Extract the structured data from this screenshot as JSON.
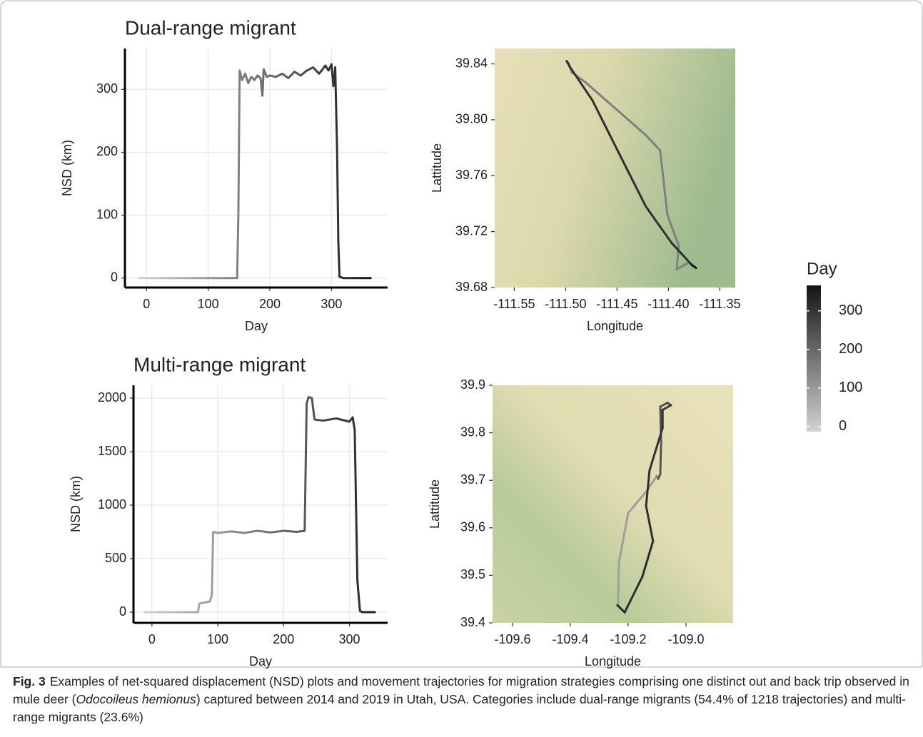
{
  "chart_data": [
    {
      "type": "line",
      "title": "Dual-range migrant",
      "x_label": "Day",
      "y_label": "NSD (km)",
      "x": [
        -13,
        147,
        149,
        151,
        155,
        160,
        165,
        170,
        175,
        180,
        185,
        188,
        190,
        195,
        200,
        210,
        220,
        230,
        240,
        250,
        260,
        270,
        280,
        290,
        295,
        300,
        303,
        306,
        309,
        311,
        313,
        320,
        340,
        365
      ],
      "values": [
        0,
        0,
        100,
        330,
        315,
        325,
        310,
        320,
        315,
        322,
        318,
        290,
        332,
        320,
        322,
        320,
        325,
        318,
        328,
        322,
        330,
        335,
        325,
        338,
        330,
        340,
        305,
        335,
        205,
        60,
        2,
        0,
        0,
        0
      ],
      "xlim": [
        -35,
        391
      ],
      "ylim": [
        -15,
        365
      ],
      "xticks": [
        0,
        100,
        200,
        300
      ],
      "yticks": [
        0,
        100,
        200,
        300
      ],
      "grid": true
    },
    {
      "type": "map",
      "x_label": "Longitude",
      "y_label": "Lattitude",
      "x": [
        -111.378,
        -111.38,
        -111.392,
        -111.39,
        -111.401,
        -111.408,
        -111.422,
        -111.453,
        -111.481,
        -111.494,
        -111.497,
        -111.499,
        -111.496,
        -111.474,
        -111.446,
        -111.422,
        -111.397,
        -111.377,
        -111.373
      ],
      "values": [
        39.696,
        39.698,
        39.693,
        39.71,
        39.732,
        39.778,
        39.789,
        39.809,
        39.827,
        39.834,
        39.84,
        39.842,
        39.838,
        39.814,
        39.773,
        39.738,
        39.712,
        39.696,
        39.694
      ],
      "day": [
        0,
        100,
        148,
        149,
        150,
        150,
        150,
        151,
        151,
        151,
        152,
        230,
        310,
        311,
        311,
        312,
        312,
        313,
        365
      ],
      "xlim": [
        -111.569,
        -111.335
      ],
      "ylim": [
        39.68,
        39.851
      ],
      "xticks": [
        -111.55,
        {
          "value": -111.5,
          "label": "-111.50"
        },
        -111.45,
        {
          "value": -111.4,
          "label": "-111.40"
        },
        -111.35
      ],
      "yticks": [
        39.68,
        39.72,
        39.76,
        {
          "value": 39.8,
          "label": "39.80"
        },
        39.84
      ]
    },
    {
      "type": "line",
      "title": "Multi-range migrant",
      "x_label": "Day",
      "y_label": "NSD (km)",
      "x": [
        -13,
        70,
        72,
        88,
        91,
        93,
        100,
        120,
        140,
        160,
        180,
        200,
        220,
        232,
        235,
        238,
        243,
        247,
        260,
        280,
        300,
        305,
        308,
        312,
        316,
        320,
        340
      ],
      "values": [
        0,
        0,
        80,
        100,
        160,
        750,
        740,
        755,
        740,
        760,
        745,
        760,
        750,
        760,
        1950,
        2010,
        2000,
        1800,
        1790,
        1810,
        1780,
        1820,
        1700,
        300,
        10,
        0,
        0
      ],
      "xlim": [
        -28,
        358
      ],
      "ylim": [
        -100,
        2120
      ],
      "xticks": [
        0,
        100,
        200,
        300
      ],
      "yticks": [
        0,
        500,
        1000,
        1500,
        2000
      ],
      "grid": true
    },
    {
      "type": "map",
      "x_label": "Longitude",
      "y_label": "Lattitude",
      "x": [
        -109.237,
        -109.235,
        -109.232,
        -109.2,
        -109.138,
        -109.101,
        -109.096,
        -109.089,
        -109.086,
        -109.089,
        -109.064,
        -109.052,
        -109.081,
        -109.081,
        -109.126,
        -109.138,
        -109.114,
        -109.151,
        -109.212,
        -109.237
      ],
      "values": [
        39.437,
        39.44,
        39.527,
        39.631,
        39.676,
        39.709,
        39.703,
        39.713,
        39.781,
        39.855,
        39.863,
        39.858,
        39.848,
        39.81,
        39.721,
        39.646,
        39.572,
        39.497,
        39.422,
        39.437
      ],
      "day": [
        0,
        70,
        90,
        91,
        92,
        93,
        150,
        233,
        235,
        237,
        240,
        260,
        290,
        310,
        311,
        312,
        313,
        314,
        315,
        316
      ],
      "xlim": [
        -109.669,
        -108.837
      ],
      "ylim": [
        39.4,
        39.9
      ],
      "xticks": [
        -109.6,
        -109.4,
        -109.2,
        {
          "value": -109.0,
          "label": "-109.0"
        }
      ],
      "yticks": [
        39.4,
        39.5,
        39.6,
        39.7,
        39.8,
        39.9
      ]
    }
  ],
  "colorbar": {
    "title": "Day",
    "lim": [
      -13,
      366
    ],
    "ticks": [
      0,
      100,
      200,
      300
    ],
    "low_color": "#d2d2d2",
    "high_color": "#141414"
  },
  "caption": {
    "label": "Fig. 3",
    "text_1": "Examples of net-squared displacement (NSD) plots and movement trajectories for migration strategies comprising one distinct out and back trip observed in mule deer (",
    "italic": "Odocoileus hemionus",
    "text_2": ") captured between 2014 and 2019 in Utah, USA. Categories include dual-range migrants (54.4% of 1218 trajectories) and multi-range migrants (23.6%)"
  }
}
